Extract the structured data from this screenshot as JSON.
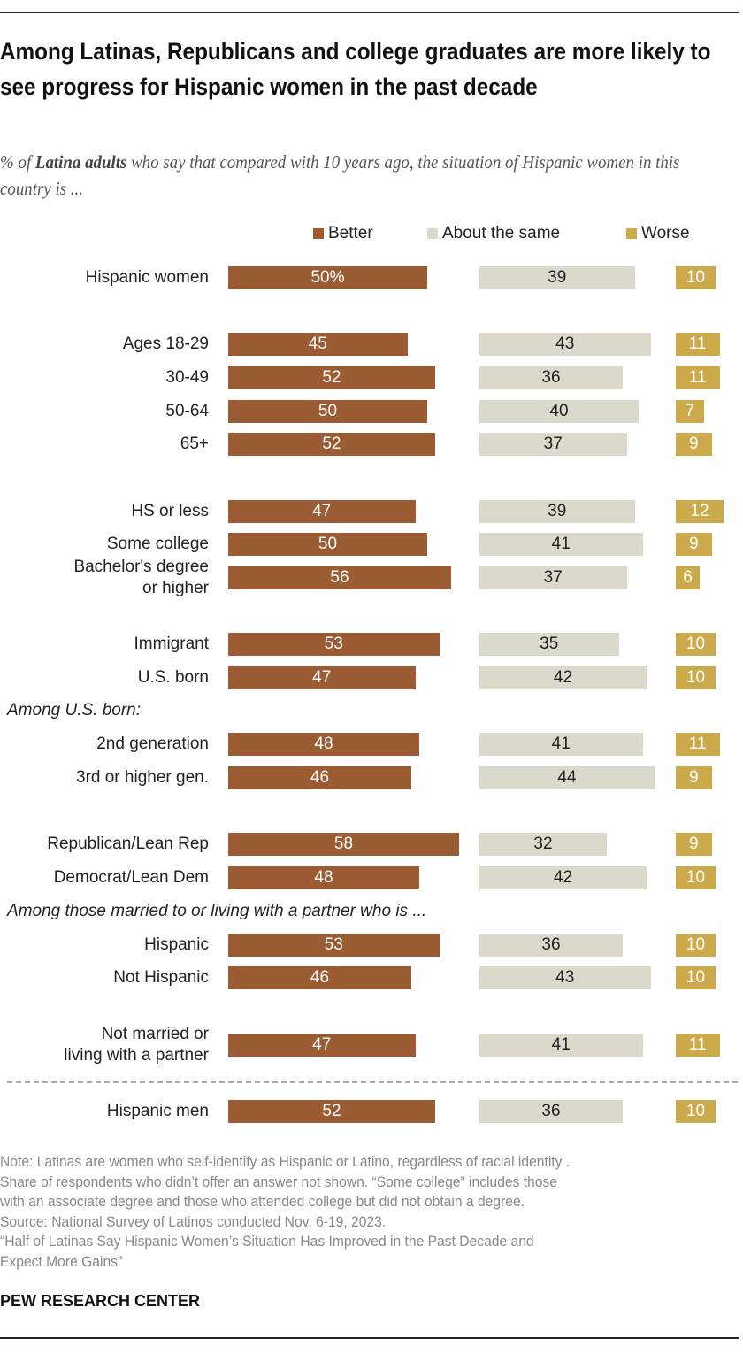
{
  "chart_data": {
    "type": "bar",
    "title": "Among Latinas, Republicans and college graduates are more likely to see progress for Hispanic women in the past decade",
    "subtitle_pre": "% of ",
    "subtitle_bold": "Latina adults",
    "subtitle_post": " who say that compared with 10 years ago, the situation of Hispanic women in this country is ...",
    "legend": [
      {
        "name": "Better",
        "color": "#9b5b33"
      },
      {
        "name": "About the same",
        "color": "#dbd8cc"
      },
      {
        "name": "Worse",
        "color": "#cca94a"
      }
    ],
    "rows": [
      {
        "label": "Hispanic women",
        "better": 50,
        "same": 39,
        "worse": 10,
        "better_label": "50%"
      },
      {
        "label": "Ages 18-29",
        "better": 45,
        "same": 43,
        "worse": 11
      },
      {
        "label": "30-49",
        "better": 52,
        "same": 36,
        "worse": 11
      },
      {
        "label": "50-64",
        "better": 50,
        "same": 40,
        "worse": 7
      },
      {
        "label": "65+",
        "better": 52,
        "same": 37,
        "worse": 9
      },
      {
        "label": "HS or less",
        "better": 47,
        "same": 39,
        "worse": 12
      },
      {
        "label": "Some college",
        "better": 50,
        "same": 41,
        "worse": 9
      },
      {
        "label": "Bachelor's degree\nor higher",
        "better": 56,
        "same": 37,
        "worse": 6
      },
      {
        "label": "Immigrant",
        "better": 53,
        "same": 35,
        "worse": 10
      },
      {
        "label": "U.S. born",
        "better": 47,
        "same": 42,
        "worse": 10
      },
      {
        "header": "Among U.S. born:"
      },
      {
        "label": "2nd generation",
        "better": 48,
        "same": 41,
        "worse": 11
      },
      {
        "label": "3rd or higher gen.",
        "better": 46,
        "same": 44,
        "worse": 9
      },
      {
        "label": "Republican/Lean Rep",
        "better": 58,
        "same": 32,
        "worse": 9
      },
      {
        "label": "Democrat/Lean Dem",
        "better": 48,
        "same": 42,
        "worse": 10
      },
      {
        "header": "Among those married to or living with a partner who is ..."
      },
      {
        "label": "Hispanic",
        "better": 53,
        "same": 36,
        "worse": 10
      },
      {
        "label": "Not Hispanic",
        "better": 46,
        "same": 43,
        "worse": 10
      },
      {
        "label": "Not married or\nliving with a partner",
        "better": 47,
        "same": 41,
        "worse": 11
      },
      {
        "divider": true
      },
      {
        "label": "Hispanic men",
        "better": 52,
        "same": 36,
        "worse": 10
      }
    ]
  },
  "notes": [
    "Note: Latinas are women who self-identify as Hispanic or Latino, regardless of racial identity .",
    "Share of respondents who didn’t offer an answer not shown. “Some college” includes those",
    "with an associate degree and those who attended college but did not obtain a degree.",
    "Source: National Survey of Latinos conducted Nov. 6-19, 2023.",
    "“Half of Latinas Say Hispanic Women’s Situation Has Improved in the Past Decade and",
    "Expect More Gains”"
  ],
  "brand": "PEW RESEARCH CENTER"
}
